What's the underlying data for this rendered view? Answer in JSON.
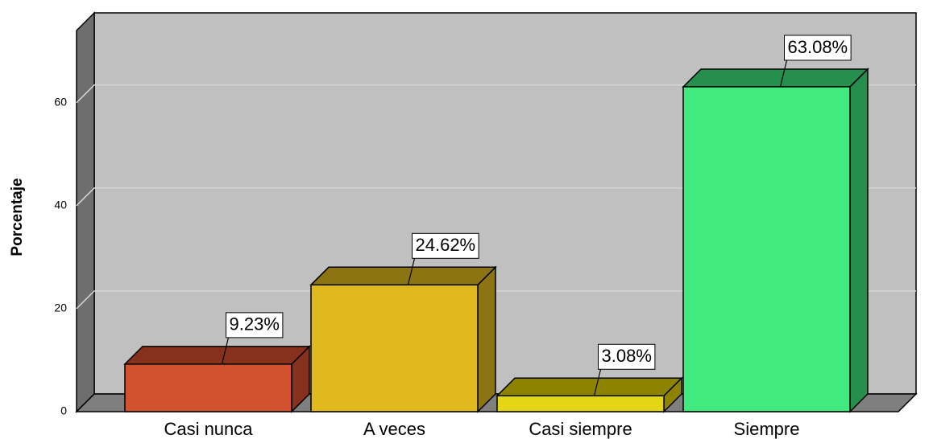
{
  "chart_data": {
    "type": "bar3d",
    "y_label": "Porcentaje",
    "categories": [
      "Casi nunca",
      "A veces",
      "Casi siempre",
      "Siempre"
    ],
    "values": [
      9.23,
      24.62,
      3.08,
      63.08
    ],
    "value_labels": [
      "9.23%",
      "24.62%",
      "3.08%",
      "63.08%"
    ],
    "colors": [
      "#d2512f",
      "#e0b91f",
      "#e5d615",
      "#42ea7d"
    ],
    "side_colors": [
      "#86311c",
      "#8b7411",
      "#8d8300",
      "#268f4e"
    ],
    "ylim": [
      0,
      74
    ],
    "yticks": [
      0,
      20,
      40,
      60
    ],
    "grid": true
  }
}
